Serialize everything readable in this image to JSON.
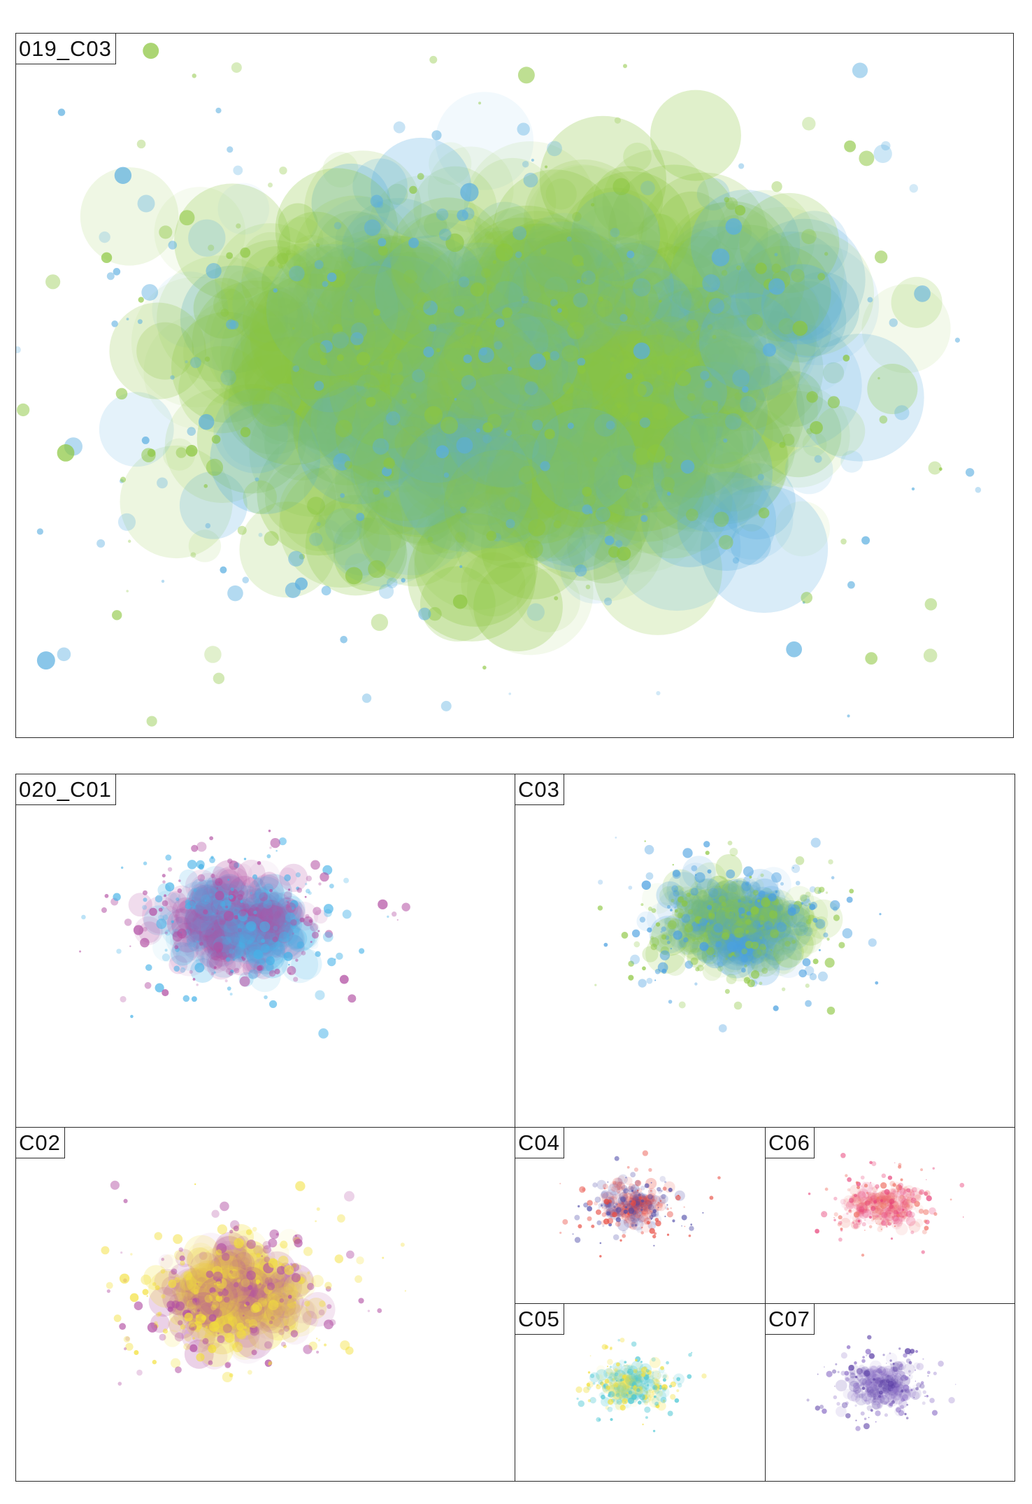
{
  "panels": [
    {
      "id": "p019",
      "label": "019_C03",
      "colors": [
        "#8cc63f",
        "#5aaee0"
      ]
    },
    {
      "id": "p020",
      "label": "020_C01",
      "colors": [
        "#b24fa3",
        "#45b2e8"
      ]
    },
    {
      "id": "pc03",
      "label": "C03",
      "colors": [
        "#8cc63f",
        "#4aa0e0"
      ]
    },
    {
      "id": "pc02",
      "label": "C02",
      "colors": [
        "#b24fa3",
        "#f3e03a"
      ]
    },
    {
      "id": "pc04",
      "label": "C04",
      "colors": [
        "#e8493f",
        "#4d4aa8"
      ]
    },
    {
      "id": "pc06",
      "label": "C06",
      "colors": [
        "#e8437a",
        "#f0766a"
      ]
    },
    {
      "id": "pc05",
      "label": "C05",
      "colors": [
        "#f3e03a",
        "#48c6d3"
      ]
    },
    {
      "id": "pc07",
      "label": "C07",
      "colors": [
        "#5b3fa6",
        "#8e72c8"
      ]
    }
  ]
}
